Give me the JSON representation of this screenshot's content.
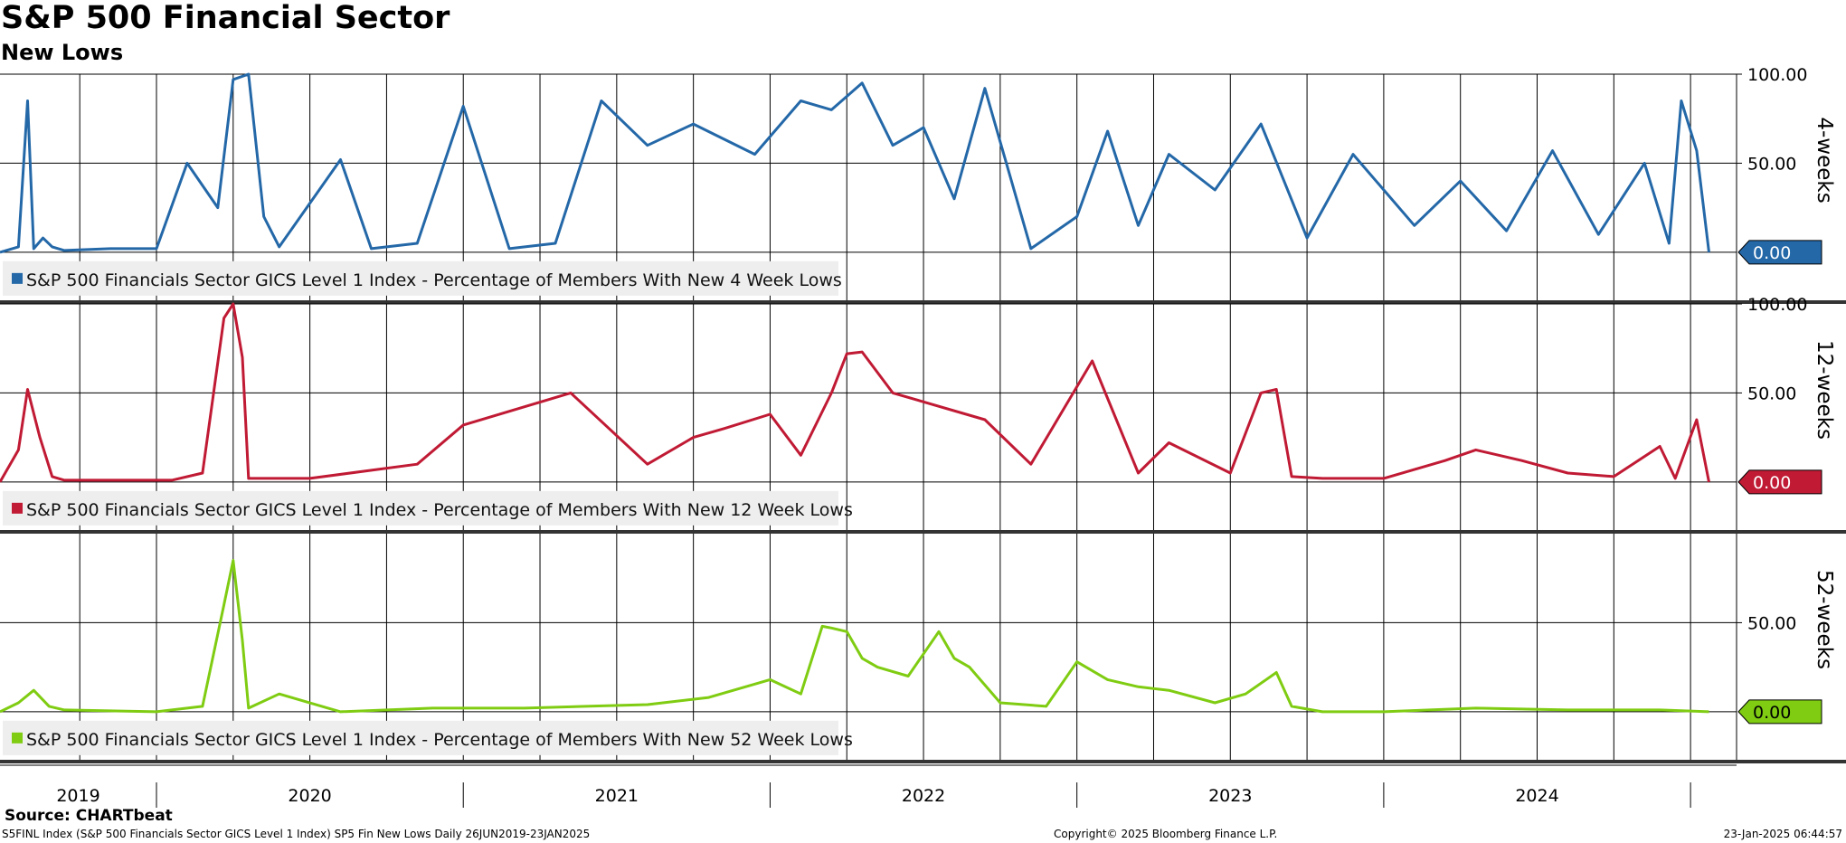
{
  "header": {
    "title": "S&P 500 Financial Sector",
    "subtitle": "New Lows"
  },
  "footer": {
    "source": "Source: CHARTbeat",
    "description": "S5FINL Index (S&P 500 Financials Sector GICS Level 1 Index) SP5 Fin New Lows  Daily 26JUN2019-23JAN2025",
    "copyright": "Copyright© 2025 Bloomberg Finance L.P.",
    "timestamp": "23-Jan-2025 06:44:57"
  },
  "colors": {
    "panel1": "#2468a8",
    "panel2": "#c01a34",
    "panel3": "#7fcc12"
  },
  "chart_data": [
    {
      "type": "line",
      "axis_title": "4-weeks",
      "legend": "S&P 500 Financials Sector GICS Level 1 Index - Percentage of Members With New 4 Week Lows",
      "ylim": [
        -27,
        100
      ],
      "yticks": [
        "100.00",
        "50.00"
      ],
      "last_value_label": "0.00",
      "grid": true,
      "x": [
        2019.49,
        2019.55,
        2019.58,
        2019.6,
        2019.63,
        2019.66,
        2019.7,
        2019.85,
        2020.0,
        2020.1,
        2020.2,
        2020.25,
        2020.3,
        2020.35,
        2020.4,
        2020.6,
        2020.7,
        2020.85,
        2021.0,
        2021.15,
        2021.3,
        2021.45,
        2021.6,
        2021.75,
        2021.95,
        2022.1,
        2022.2,
        2022.3,
        2022.4,
        2022.5,
        2022.6,
        2022.7,
        2022.85,
        2023.0,
        2023.1,
        2023.2,
        2023.3,
        2023.45,
        2023.6,
        2023.75,
        2023.9,
        2024.1,
        2024.25,
        2024.4,
        2024.55,
        2024.7,
        2024.85,
        2024.93,
        2024.97,
        2025.02,
        2025.06
      ],
      "values": [
        0,
        3,
        85,
        2,
        8,
        3,
        1,
        2,
        2,
        50,
        25,
        97,
        100,
        20,
        3,
        52,
        2,
        5,
        82,
        2,
        5,
        85,
        60,
        72,
        55,
        85,
        80,
        95,
        60,
        70,
        30,
        92,
        2,
        20,
        68,
        15,
        55,
        35,
        72,
        8,
        55,
        15,
        40,
        12,
        57,
        10,
        50,
        5,
        85,
        57,
        0
      ]
    },
    {
      "type": "line",
      "axis_title": "12-weeks",
      "legend": "S&P 500 Financials Sector GICS Level 1 Index - Percentage of Members With New 12 Week Lows",
      "ylim": [
        -27,
        100
      ],
      "yticks": [
        "100.00",
        "50.00"
      ],
      "last_value_label": "0.00",
      "grid": true,
      "x": [
        2019.49,
        2019.55,
        2019.58,
        2019.62,
        2019.66,
        2019.7,
        2020.05,
        2020.15,
        2020.22,
        2020.25,
        2020.28,
        2020.3,
        2020.5,
        2020.85,
        2021.0,
        2021.35,
        2021.6,
        2021.75,
        2021.85,
        2022.0,
        2022.1,
        2022.2,
        2022.25,
        2022.3,
        2022.4,
        2022.5,
        2022.7,
        2022.85,
        2023.05,
        2023.2,
        2023.3,
        2023.5,
        2023.6,
        2023.65,
        2023.7,
        2023.8,
        2024.0,
        2024.2,
        2024.3,
        2024.45,
        2024.6,
        2024.75,
        2024.9,
        2024.95,
        2025.02,
        2025.06
      ],
      "values": [
        0,
        18,
        52,
        25,
        3,
        1,
        1,
        5,
        92,
        100,
        70,
        2,
        2,
        10,
        32,
        50,
        10,
        25,
        30,
        38,
        15,
        50,
        72,
        73,
        50,
        45,
        35,
        10,
        68,
        5,
        22,
        5,
        50,
        52,
        3,
        2,
        2,
        12,
        18,
        12,
        5,
        3,
        20,
        2,
        35,
        0
      ]
    },
    {
      "type": "line",
      "axis_title": "52-weeks",
      "legend": "S&P 500 Financials Sector GICS Level 1 Index - Percentage of Members With New 52 Week Lows",
      "ylim": [
        -27,
        100
      ],
      "yticks": [
        "50.00"
      ],
      "last_value_label": "0.00",
      "grid": true,
      "x": [
        2019.49,
        2019.55,
        2019.6,
        2019.65,
        2019.7,
        2020.0,
        2020.15,
        2020.22,
        2020.25,
        2020.28,
        2020.3,
        2020.4,
        2020.6,
        2020.9,
        2021.2,
        2021.4,
        2021.6,
        2021.8,
        2022.0,
        2022.1,
        2022.17,
        2022.2,
        2022.25,
        2022.3,
        2022.35,
        2022.45,
        2022.55,
        2022.6,
        2022.65,
        2022.75,
        2022.9,
        2023.0,
        2023.1,
        2023.2,
        2023.3,
        2023.45,
        2023.55,
        2023.65,
        2023.7,
        2023.8,
        2024.0,
        2024.3,
        2024.6,
        2024.9,
        2025.06
      ],
      "values": [
        0,
        5,
        12,
        3,
        1,
        0,
        3,
        60,
        85,
        40,
        2,
        10,
        0,
        2,
        2,
        3,
        4,
        8,
        18,
        10,
        48,
        47,
        45,
        30,
        25,
        20,
        45,
        30,
        25,
        5,
        3,
        28,
        18,
        14,
        12,
        5,
        10,
        22,
        3,
        0,
        0,
        2,
        1,
        1,
        0
      ]
    }
  ],
  "x_axis": {
    "labels": [
      "2019",
      "2020",
      "2021",
      "2022",
      "2023",
      "2024"
    ],
    "domain": [
      2019.49,
      2025.15
    ]
  }
}
